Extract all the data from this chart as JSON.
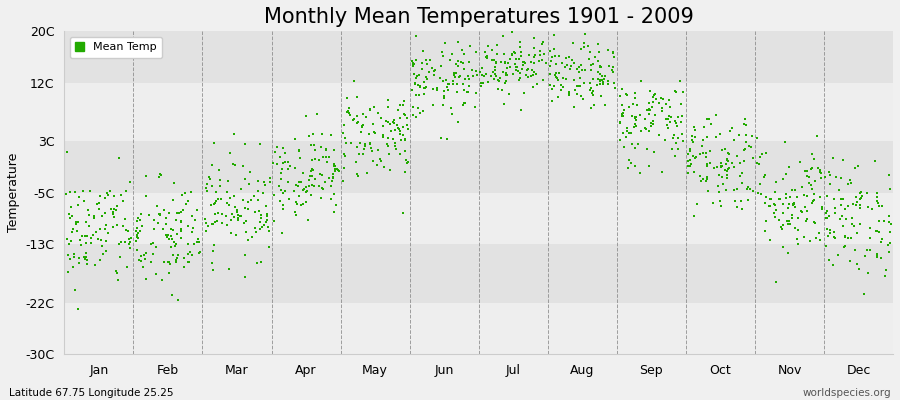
{
  "title": "Monthly Mean Temperatures 1901 - 2009",
  "ylabel": "Temperature",
  "footer_left": "Latitude 67.75 Longitude 25.25",
  "footer_right": "worldspecies.org",
  "yticks": [
    -30,
    -22,
    -13,
    -5,
    3,
    12,
    20
  ],
  "ytick_labels": [
    "-30C",
    "-22C",
    "-13C",
    "-5C",
    "3C",
    "12C",
    "20C"
  ],
  "ylim": [
    -30,
    20
  ],
  "months": [
    "Jan",
    "Feb",
    "Mar",
    "Apr",
    "May",
    "Jun",
    "Jul",
    "Aug",
    "Sep",
    "Oct",
    "Nov",
    "Dec"
  ],
  "dot_color": "#22aa00",
  "dot_size": 2.5,
  "background_color": "#f0f0f0",
  "plot_bg_light": "#eeeeee",
  "plot_bg_dark": "#e2e2e2",
  "title_fontsize": 15,
  "axis_fontsize": 9,
  "legend_fontsize": 8,
  "monthly_mean_temps": [
    -11,
    -12,
    -7,
    -2,
    4,
    12,
    15,
    13,
    6,
    0,
    -6,
    -9
  ],
  "monthly_std_temps": [
    4.5,
    4.5,
    4.0,
    3.5,
    3.5,
    3.0,
    2.5,
    2.5,
    3.5,
    4.0,
    4.5,
    4.5
  ],
  "num_years": 109,
  "seed": 42,
  "band_colors": [
    "#eeeeee",
    "#e2e2e2",
    "#eeeeee",
    "#e2e2e2",
    "#eeeeee",
    "#e2e2e2",
    "#eeeeee"
  ],
  "dashed_line_color": "#888888",
  "spine_color": "#cccccc"
}
